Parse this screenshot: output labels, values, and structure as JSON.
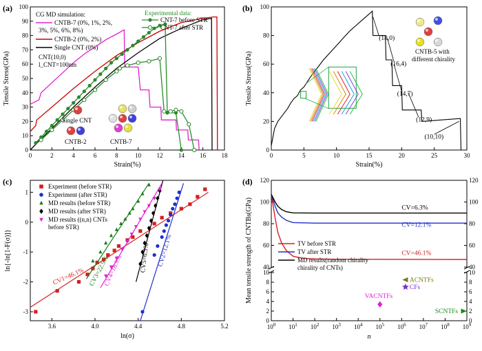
{
  "chart_data": [
    {
      "panel": "(a)",
      "type": "line",
      "xlabel": "Strain(%)",
      "ylabel": "Tensile Stress(GPa)",
      "xlim": [
        0,
        18
      ],
      "ylim": [
        0,
        100
      ],
      "xticks": [
        0,
        2,
        4,
        6,
        8,
        10,
        12,
        14,
        16,
        18
      ],
      "yticks": [
        0,
        10,
        20,
        30,
        40,
        50,
        60,
        70,
        80,
        90,
        100
      ],
      "legend_md_title": "CG MD simulation:",
      "legend_exp_title": "Experimental data:",
      "annotations": [
        "CNT(10,0)",
        "l_CNT=100nm",
        "Single CNT",
        "CNTB-2",
        "CNTB-7"
      ],
      "series": [
        {
          "name": "CNTB-7 (0%, 1%, 2%, 3%, 5%, 6%, 8%)",
          "color": "#e020d0",
          "marker": "none",
          "x": [
            0,
            0.8,
            1.0,
            2,
            3,
            4,
            5,
            6,
            7,
            8,
            8.7,
            8.75,
            10,
            10.2,
            11,
            11.1,
            12.1,
            12.15,
            13.5,
            13.55,
            14.6,
            14.65,
            15.6,
            15.65
          ],
          "y": [
            32,
            35,
            40,
            47,
            54,
            61,
            67,
            72,
            77,
            81,
            84,
            58,
            58,
            42,
            42,
            30,
            30,
            21,
            21,
            14,
            14,
            7,
            7,
            0
          ]
        },
        {
          "name": "CNTB-2 (0%, 2%)",
          "color": "#cc0000",
          "marker": "none",
          "x": [
            0,
            0.5,
            0.6,
            2,
            4,
            6,
            8,
            10,
            12,
            14,
            16,
            17,
            17.3,
            17.35
          ],
          "y": [
            13,
            17,
            21,
            30,
            43,
            55,
            66,
            75,
            83,
            89,
            92,
            93,
            93,
            0
          ]
        },
        {
          "name": "Single CNT (0%)",
          "color": "#000000",
          "marker": "none",
          "x": [
            0,
            1,
            2,
            4,
            6,
            8,
            10,
            12,
            14,
            16,
            16.8,
            16.85
          ],
          "y": [
            0,
            8,
            15,
            30,
            44,
            57,
            68,
            78,
            85,
            91,
            92,
            0
          ]
        },
        {
          "name": "CNT-7 before STR",
          "color": "#2a8a2a",
          "marker": "filled-circle",
          "x": [
            0.5,
            1,
            1.5,
            2,
            2.5,
            3,
            3.5,
            4,
            4.5,
            5,
            5.5,
            6,
            6.5,
            7,
            7.5,
            8,
            8.5,
            9,
            9.5,
            10,
            10.5,
            11,
            11.5,
            12,
            12.5,
            12.7,
            13.5,
            14
          ],
          "y": [
            5,
            9,
            13,
            17,
            21,
            25,
            29,
            33,
            37,
            41,
            45,
            49,
            53,
            57,
            61,
            64,
            67,
            70,
            73,
            76,
            79,
            82,
            85,
            87,
            88,
            26,
            26,
            0
          ]
        },
        {
          "name": "CNT-7 after STR",
          "color": "#2a8a2a",
          "marker": "open-circle",
          "x": [
            1,
            2,
            3,
            4,
            5,
            6,
            7,
            8,
            8.3,
            9,
            10,
            11,
            12,
            12.4,
            13,
            13.5,
            14,
            14.7,
            15.2
          ],
          "y": [
            7,
            14,
            21,
            28,
            35,
            42,
            49,
            55,
            57,
            59,
            61,
            62,
            64,
            27,
            27,
            28,
            27,
            18,
            0
          ]
        }
      ]
    },
    {
      "panel": "(b)",
      "type": "line",
      "xlabel": "Strain(%)",
      "ylabel": "Tensile Stress(GPa)",
      "xlim": [
        0,
        30
      ],
      "ylim": [
        0,
        100
      ],
      "xticks": [
        0,
        5,
        10,
        15,
        20,
        25,
        30
      ],
      "yticks": [
        0,
        20,
        40,
        60,
        80,
        100
      ],
      "chirality_labels": [
        {
          "text": "(18,0)",
          "x": 16.5,
          "y": 77
        },
        {
          "text": "(16,4)",
          "x": 18.3,
          "y": 59
        },
        {
          "text": "(14,7)",
          "x": 19.3,
          "y": 38
        },
        {
          "text": "(12,9)",
          "x": 22.2,
          "y": 20
        },
        {
          "text": "(10,10)",
          "x": 23.5,
          "y": 8
        }
      ],
      "inset_label": "CNTB-5 with different chirality",
      "series": [
        {
          "name": "",
          "color": "#000000",
          "x": [
            0,
            0.5,
            1,
            1.5,
            2,
            2.5,
            3,
            3.5,
            4,
            4.5,
            5,
            6,
            7,
            8,
            9,
            10,
            11,
            12,
            13,
            14,
            15,
            15.5,
            15.6,
            17.5,
            17.6,
            18.5,
            18.6,
            20,
            20.1,
            23,
            23.1,
            29,
            29.1
          ],
          "y": [
            3,
            15,
            20,
            23,
            26,
            29,
            33,
            36,
            38,
            42,
            44,
            51,
            57,
            63,
            68,
            73,
            78,
            83,
            87,
            91,
            95,
            97,
            80,
            80,
            63,
            63,
            45,
            45,
            28,
            28,
            20,
            22,
            0
          ]
        }
      ]
    },
    {
      "panel": "(c)",
      "type": "scatter",
      "xlabel": "ln(σ)",
      "ylabel": "ln{-ln[1-F(σ)]}",
      "xlim": [
        3.4,
        5.2
      ],
      "ylim": [
        -3.3,
        1.4
      ],
      "xticks": [
        3.6,
        4.0,
        4.4,
        4.8,
        5.2
      ],
      "yticks": [
        -3,
        -2,
        -1,
        0,
        1
      ],
      "fit_labels": [
        {
          "text": "CV1=46.1%",
          "x": 3.62,
          "y": -2.1,
          "color": "#d42020",
          "angle": -24
        },
        {
          "text": "CV3=22.9%",
          "x": 3.98,
          "y": -2.15,
          "color": "#1a7a1a",
          "angle": -62
        },
        {
          "text": "CV4=18.9%",
          "x": 4.12,
          "y": -2.15,
          "color": "#e020d0",
          "angle": -66
        },
        {
          "text": "CV5=6.3%",
          "x": 4.46,
          "y": -1.7,
          "color": "#000000",
          "angle": -83
        },
        {
          "text": "CV2=12.1%",
          "x": 4.62,
          "y": -1.5,
          "color": "#1f2fcc",
          "angle": -74
        }
      ],
      "series": [
        {
          "name": "Experiment (before STR)",
          "color": "#d42020",
          "marker": "square",
          "x": [
            3.45,
            3.65,
            3.85,
            3.93,
            3.98,
            4.02,
            4.08,
            4.12,
            4.18,
            4.22,
            4.3,
            4.35,
            4.42,
            4.55,
            4.62,
            4.7,
            4.8,
            4.88,
            4.95,
            5.02
          ],
          "y": [
            -3.0,
            -2.3,
            -2.0,
            -1.75,
            -1.55,
            -1.35,
            -1.25,
            -1.1,
            -0.95,
            -0.8,
            -0.6,
            -0.5,
            -0.3,
            -0.05,
            0.15,
            0.3,
            0.45,
            0.6,
            0.85,
            1.1
          ],
          "fit": {
            "x": [
              3.4,
              5.05
            ],
            "y": [
              -2.85,
              1.0
            ]
          }
        },
        {
          "name": "Experiment (after STR)",
          "color": "#1f2fcc",
          "marker": "circle",
          "x": [
            4.44,
            4.55,
            4.58,
            4.62,
            4.64,
            4.66,
            4.68,
            4.7,
            4.72,
            4.74,
            4.76,
            4.78
          ],
          "y": [
            -3.0,
            -1.1,
            -0.8,
            -0.5,
            -0.3,
            -0.1,
            0.05,
            0.25,
            0.45,
            0.6,
            0.8,
            1.0
          ],
          "fit": {
            "x": [
              4.42,
              4.82
            ],
            "y": [
              -3.3,
              1.3
            ]
          }
        },
        {
          "name": "MD results (before STR)",
          "color": "#1a7a1a",
          "marker": "triangle-up",
          "x": [
            3.98,
            4.05,
            4.1,
            4.15,
            4.2,
            4.24,
            4.28,
            4.32,
            4.35,
            4.4,
            4.44,
            4.5
          ],
          "y": [
            -1.3,
            -1.0,
            -0.7,
            -0.45,
            -0.25,
            -0.05,
            0.1,
            0.3,
            0.45,
            0.7,
            0.95,
            1.25
          ],
          "fit": {
            "x": [
              3.92,
              4.5
            ],
            "y": [
              -1.9,
              1.3
            ]
          }
        },
        {
          "name": "MD results (after STR)",
          "color": "#000000",
          "marker": "diamond",
          "x": [
            4.42,
            4.44,
            4.46,
            4.48,
            4.5,
            4.52,
            4.54,
            4.56,
            4.58,
            4.6
          ],
          "y": [
            -1.4,
            -1.0,
            -0.7,
            -0.45,
            -0.2,
            0.05,
            0.3,
            0.55,
            0.8,
            1.05
          ],
          "fit": {
            "x": [
              4.38,
              4.63
            ],
            "y": [
              -2.0,
              1.4
            ]
          }
        },
        {
          "name": "MD results ((n,n) CNTs before STR)",
          "color": "#e020d0",
          "marker": "triangle-down",
          "x": [
            4.1,
            4.15,
            4.2,
            4.25,
            4.3,
            4.34,
            4.38,
            4.42,
            4.46,
            4.5,
            4.55,
            4.6
          ],
          "y": [
            -1.8,
            -1.5,
            -1.2,
            -0.9,
            -0.65,
            -0.4,
            -0.15,
            0.1,
            0.35,
            0.55,
            0.8,
            1.1
          ],
          "fit": {
            "x": [
              4.05,
              4.62
            ],
            "y": [
              -2.2,
              1.3
            ]
          }
        }
      ]
    },
    {
      "panel": "(d)",
      "type": "line",
      "xlabel": "n",
      "ylabel": "Mean tensile strength of CNTBs(GPa)",
      "xscale": "log",
      "xlim": [
        1,
        1000000000
      ],
      "xticks": [
        "10^0",
        "10^1",
        "10^2",
        "10^3",
        "10^4",
        "10^5",
        "10^6",
        "10^7",
        "10^8",
        "10^9"
      ],
      "yticks_upper": [
        40,
        60,
        80,
        100,
        120
      ],
      "yticks_lower": [
        0,
        2,
        4,
        6,
        8,
        10
      ],
      "cv_labels": [
        {
          "text": "CV=6.3%",
          "x": 1000000,
          "y": 93,
          "color": "#000000"
        },
        {
          "text": "CV=12.1%",
          "x": 1000000,
          "y": 77,
          "color": "#1f2fcc"
        },
        {
          "text": "CV=46.1%",
          "x": 1000000,
          "y": 51,
          "color": "#d42020"
        }
      ],
      "series": [
        {
          "name": "TV before STR",
          "color": "#d42020",
          "x": [
            1,
            1.5,
            2,
            3,
            5,
            10,
            30,
            100,
            1000,
            1000000000
          ],
          "y": [
            107,
            85,
            72,
            62,
            55,
            50,
            48,
            47.5,
            47.2,
            47
          ]
        },
        {
          "name": "TV after STR",
          "color": "#1f2fcc",
          "x": [
            1,
            1.5,
            2,
            3,
            5,
            10,
            100,
            1000000000
          ],
          "y": [
            107,
            96,
            90,
            86,
            83,
            81,
            80.5,
            80.5
          ]
        },
        {
          "name": "MD results(random chirality of CNTs)",
          "color": "#000000",
          "x": [
            1,
            1.5,
            2,
            3,
            5,
            10,
            100,
            1000000000
          ],
          "y": [
            107,
            100,
            96,
            93,
            91,
            90,
            89.8,
            89.8
          ]
        }
      ],
      "points": [
        {
          "label": "VACNTFs",
          "x": 100000,
          "y": 3.4,
          "color": "#e020d0",
          "marker": "diamond"
        },
        {
          "label": "ACNTFs",
          "x": 1500000,
          "y": 8.5,
          "color": "#7a7a1a",
          "marker": "triangle-left"
        },
        {
          "label": "CFs",
          "x": 1500000,
          "y": 7.0,
          "color": "#7a2fcc",
          "marker": "star"
        },
        {
          "label": "SCNTFs",
          "x": 700000000,
          "y": 2.0,
          "color": "#1a8a1a",
          "marker": "triangle-right"
        }
      ]
    }
  ]
}
